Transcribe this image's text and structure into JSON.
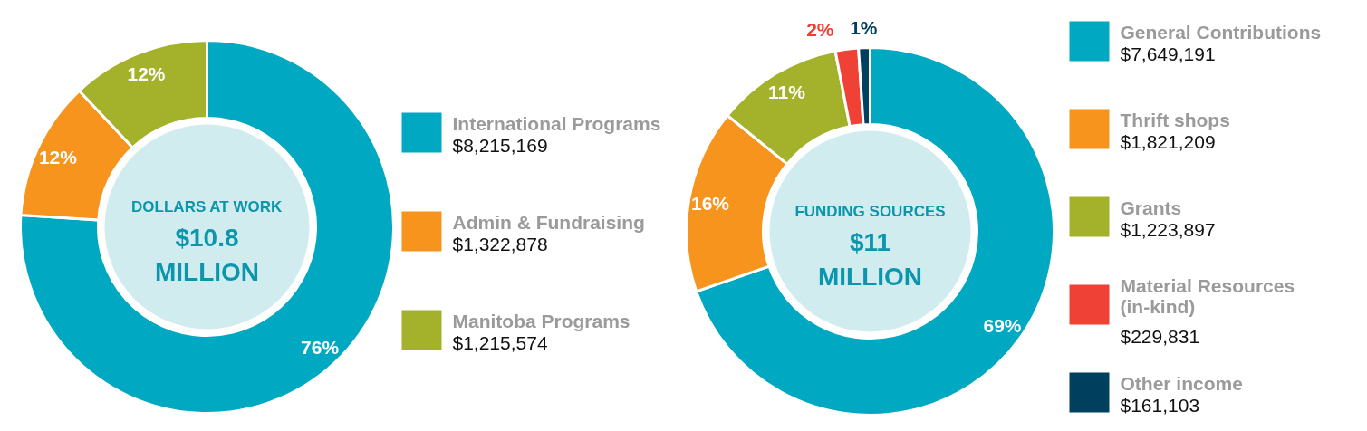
{
  "chart_data": [
    {
      "type": "donut",
      "categories": [
        "International Programs\n$8,215,169",
        "Admin & Fundraising\n$1,322,878",
        "Manitoba Programs\n$1,215,574"
      ],
      "values": [
        76,
        12,
        12
      ],
      "value_labels": [
        "76%",
        "12%",
        "12%"
      ],
      "colors": [
        "#00a9c1",
        "#f7941d",
        "#a3b12b"
      ],
      "annotations": [
        "DOLLARS AT WORK",
        "$10.8",
        "MILLION"
      ],
      "legend": "right"
    },
    {
      "type": "donut",
      "categories": [
        "General Contributions\n$7,649,191",
        "Thrift shops\n$1,821,209",
        "Grants\n$1,223,897",
        "Material Resources (in-kind)\n$229,831",
        "Other income\n$161,103"
      ],
      "values": [
        69,
        16,
        11,
        2,
        1
      ],
      "value_labels": [
        "69%",
        "16%",
        "11%",
        "2%",
        "1%"
      ],
      "colors": [
        "#00a9c1",
        "#f7941d",
        "#a3b12b",
        "#ef4136",
        "#003f5e"
      ],
      "annotations": [
        "FUNDING SOURCES",
        "$11",
        "MILLION"
      ],
      "legend": "right"
    }
  ]
}
